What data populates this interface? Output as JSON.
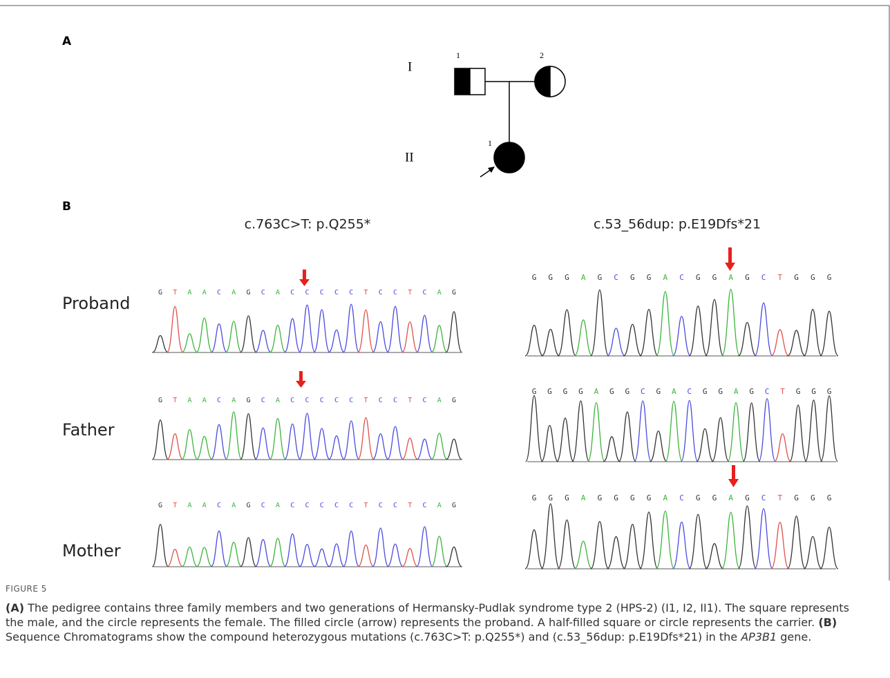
{
  "panel_a": {
    "label": "A",
    "generations": [
      "I",
      "II"
    ],
    "individuals": [
      {
        "number": "1"
      },
      {
        "number": "2"
      },
      {
        "number": "1"
      }
    ]
  },
  "panel_b": {
    "label": "B",
    "mutations": [
      {
        "title": "c.763C>T: p.Q255*"
      },
      {
        "title": "c.53_56dup: p.E19Dfs*21"
      }
    ],
    "rows": [
      {
        "name": "Proband",
        "left": [
          "G",
          "T",
          "A",
          "A",
          "C",
          "A",
          "G",
          "C",
          "A",
          "C",
          "C",
          "C",
          "C",
          "C",
          "T",
          "C",
          "C",
          "T",
          "C",
          "A",
          "G"
        ],
        "right": [
          "G",
          "G",
          "G",
          "A",
          "G",
          "C",
          "G",
          "G",
          "A",
          "C",
          "G",
          "G",
          "A",
          "G",
          "C",
          "T",
          "G",
          "G",
          "G"
        ]
      },
      {
        "name": "Father",
        "left": [
          "G",
          "T",
          "A",
          "A",
          "C",
          "A",
          "G",
          "C",
          "A",
          "C",
          "C",
          "C",
          "C",
          "C",
          "T",
          "C",
          "C",
          "T",
          "C",
          "A",
          "G"
        ],
        "right": [
          "G",
          "G",
          "G",
          "G",
          "A",
          "G",
          "G",
          "C",
          "G",
          "A",
          "C",
          "G",
          "G",
          "A",
          "G",
          "C",
          "T",
          "G",
          "G",
          "G"
        ]
      },
      {
        "name": "Mother",
        "left": [
          "G",
          "T",
          "A",
          "A",
          "C",
          "A",
          "G",
          "C",
          "A",
          "C",
          "C",
          "C",
          "C",
          "C",
          "T",
          "C",
          "C",
          "T",
          "C",
          "A",
          "G"
        ],
        "right": [
          "G",
          "G",
          "G",
          "A",
          "G",
          "G",
          "G",
          "G",
          "A",
          "C",
          "G",
          "G",
          "A",
          "G",
          "C",
          "T",
          "G",
          "G",
          "G"
        ]
      }
    ]
  },
  "caption": {
    "figure_label": "FIGURE 5",
    "panel_a_label": "(A)",
    "panel_a_text": "The pedigree contains three family members and two generations of Hermansky-Pudlak syndrome type 2 (HPS-2) (I1, I2, II1). The square represents the male, and the circle represents the female. The filled circle (arrow) represents the proband. A half-filled square or circle represents the carrier.",
    "panel_b_label": "(B)",
    "panel_b_text": "Sequence Chromatograms show the compound heterozygous mutations (c.763C>T: p.Q255*) and (c.53_56dup: p.E19Dfs*21) in the",
    "gene": "AP3B1",
    "panel_b_end": "gene."
  }
}
